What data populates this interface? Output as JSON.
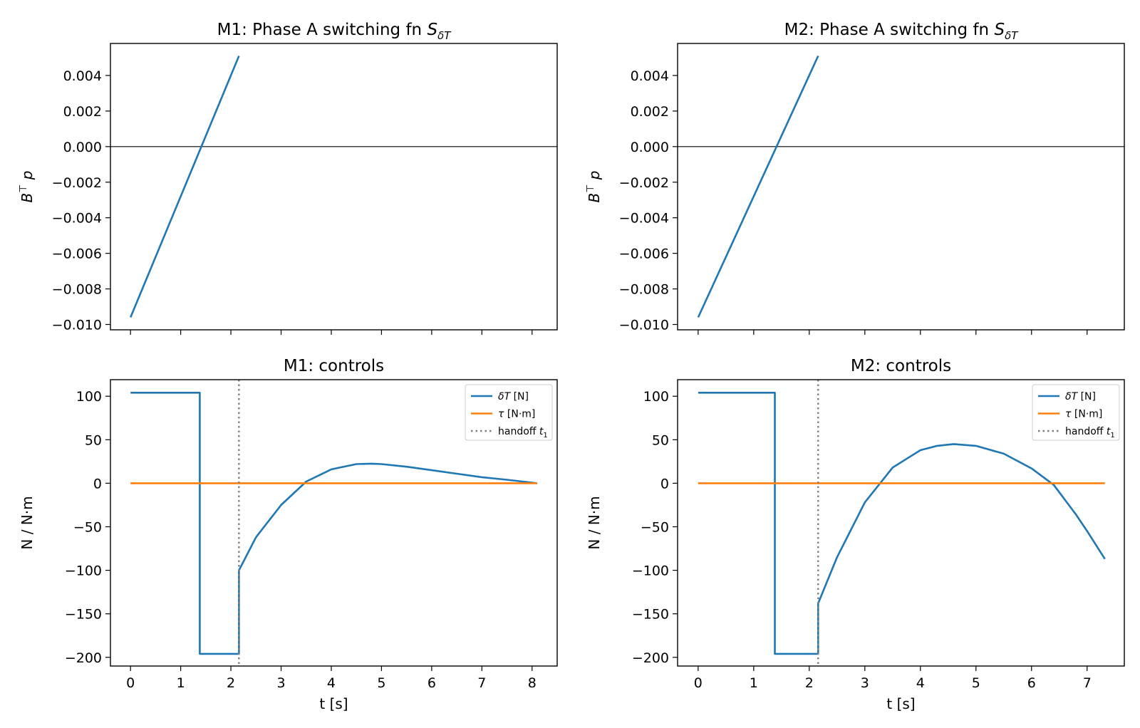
{
  "chart_data": [
    {
      "id": "m1-switch",
      "type": "line",
      "title": "M1: Phase A switching fn S_δT",
      "title_parts": {
        "main": "M1: Phase A switching fn ",
        "symbol": "S",
        "sub": "δT"
      },
      "xlabel": "",
      "ylabel": "B⊤p",
      "ylabel_parts": {
        "b": "B",
        "sup": "⊤",
        "p": "p"
      },
      "xlim": [
        -0.4,
        8.5
      ],
      "ylim": [
        -0.0103,
        0.0058
      ],
      "xticks": [
        0,
        1,
        2,
        3,
        4,
        5,
        6,
        7,
        8
      ],
      "show_xticklabels": false,
      "yticks": [
        -0.01,
        -0.008,
        -0.006,
        -0.004,
        -0.002,
        0.0,
        0.002,
        0.004
      ],
      "ytick_labels": [
        "−0.010",
        "−0.008",
        "−0.006",
        "−0.004",
        "−0.002",
        "0.000",
        "0.002",
        "0.004"
      ],
      "hlines": [
        {
          "y": 0,
          "color": "#000000"
        }
      ],
      "grid": false,
      "series": [
        {
          "color": "#1f77b4",
          "x": [
            0,
            2.16
          ],
          "y": [
            -0.0096,
            0.0051
          ]
        }
      ]
    },
    {
      "id": "m2-switch",
      "type": "line",
      "title": "M2: Phase A switching fn S_δT",
      "title_parts": {
        "main": "M2: Phase A switching fn ",
        "symbol": "S",
        "sub": "δT"
      },
      "xlabel": "",
      "ylabel": "B⊤p",
      "ylabel_parts": {
        "b": "B",
        "sup": "⊤",
        "p": "p"
      },
      "xlim": [
        -0.37,
        7.67
      ],
      "ylim": [
        -0.0103,
        0.0058
      ],
      "xticks": [
        0,
        1,
        2,
        3,
        4,
        5,
        6,
        7
      ],
      "show_xticklabels": false,
      "yticks": [
        -0.01,
        -0.008,
        -0.006,
        -0.004,
        -0.002,
        0.0,
        0.002,
        0.004
      ],
      "ytick_labels": [
        "−0.010",
        "−0.008",
        "−0.006",
        "−0.004",
        "−0.002",
        "0.000",
        "0.002",
        "0.004"
      ],
      "hlines": [
        {
          "y": 0,
          "color": "#000000"
        }
      ],
      "grid": false,
      "series": [
        {
          "color": "#1f77b4",
          "x": [
            0,
            2.16
          ],
          "y": [
            -0.0096,
            0.0051
          ]
        }
      ]
    },
    {
      "id": "m1-controls",
      "type": "line",
      "title": "M1: controls",
      "xlabel": "t [s]",
      "ylabel": "N / N·m",
      "xlim": [
        -0.4,
        8.5
      ],
      "ylim": [
        -210,
        119
      ],
      "xticks": [
        0,
        1,
        2,
        3,
        4,
        5,
        6,
        7,
        8
      ],
      "xtick_labels": [
        "0",
        "1",
        "2",
        "3",
        "4",
        "5",
        "6",
        "7",
        "8"
      ],
      "show_xticklabels": true,
      "yticks": [
        -200,
        -150,
        -100,
        -50,
        0,
        50,
        100
      ],
      "ytick_labels": [
        "−200",
        "−150",
        "−100",
        "−50",
        "0",
        "50",
        "100"
      ],
      "grid": false,
      "legend_position": "upper right",
      "vlines": [
        {
          "x": 2.16,
          "color": "#7f7f7f",
          "style": "dotted"
        }
      ],
      "series": [
        {
          "name": "δT [N]",
          "legend_parts": {
            "sym": "δT",
            "unit": " [N]"
          },
          "color": "#1f77b4",
          "x": [
            0,
            1.38,
            1.38,
            2.16,
            2.16,
            2.5,
            3.0,
            3.5,
            4.0,
            4.5,
            4.8,
            5.0,
            5.5,
            6.0,
            6.5,
            7.0,
            7.5,
            8.1
          ],
          "y": [
            104,
            104,
            -196,
            -196,
            -100,
            -62,
            -25,
            2,
            16,
            22,
            22.5,
            22,
            19,
            15,
            11,
            7,
            4,
            0
          ]
        },
        {
          "name": "τ [N·m]",
          "legend_parts": {
            "sym": "τ",
            "unit": " [N·m]"
          },
          "color": "#ff7f0e",
          "x": [
            0,
            8.1
          ],
          "y": [
            0,
            0
          ]
        },
        {
          "name": "handoff t1",
          "legend_parts": {
            "sym": "handoff ",
            "var": "t",
            "sub": "1"
          },
          "color": "#7f7f7f",
          "style": "dotted",
          "legend_only": true
        }
      ]
    },
    {
      "id": "m2-controls",
      "type": "line",
      "title": "M2: controls",
      "xlabel": "t [s]",
      "ylabel": "N / N·m",
      "xlim": [
        -0.37,
        7.67
      ],
      "ylim": [
        -210,
        119
      ],
      "xticks": [
        0,
        1,
        2,
        3,
        4,
        5,
        6,
        7
      ],
      "xtick_labels": [
        "0",
        "1",
        "2",
        "3",
        "4",
        "5",
        "6",
        "7"
      ],
      "show_xticklabels": true,
      "yticks": [
        -200,
        -150,
        -100,
        -50,
        0,
        50,
        100
      ],
      "ytick_labels": [
        "−200",
        "−150",
        "−100",
        "−50",
        "0",
        "50",
        "100"
      ],
      "grid": false,
      "legend_position": "upper right",
      "vlines": [
        {
          "x": 2.16,
          "color": "#7f7f7f",
          "style": "dotted"
        }
      ],
      "series": [
        {
          "name": "δT [N]",
          "legend_parts": {
            "sym": "δT",
            "unit": " [N]"
          },
          "color": "#1f77b4",
          "x": [
            0,
            1.38,
            1.38,
            2.16,
            2.16,
            2.5,
            3.0,
            3.5,
            4.0,
            4.3,
            4.6,
            5.0,
            5.5,
            6.0,
            6.4,
            6.8,
            7.0,
            7.32
          ],
          "y": [
            104,
            104,
            -196,
            -196,
            -138,
            -85,
            -22,
            18,
            38,
            43,
            45,
            43,
            34,
            17,
            -2,
            -36,
            -55,
            -87
          ]
        },
        {
          "name": "τ [N·m]",
          "legend_parts": {
            "sym": "τ",
            "unit": " [N·m]"
          },
          "color": "#ff7f0e",
          "x": [
            0,
            7.32
          ],
          "y": [
            0,
            0
          ]
        },
        {
          "name": "handoff t1",
          "legend_parts": {
            "sym": "handoff ",
            "var": "t",
            "sub": "1"
          },
          "color": "#7f7f7f",
          "style": "dotted",
          "legend_only": true
        }
      ]
    }
  ]
}
